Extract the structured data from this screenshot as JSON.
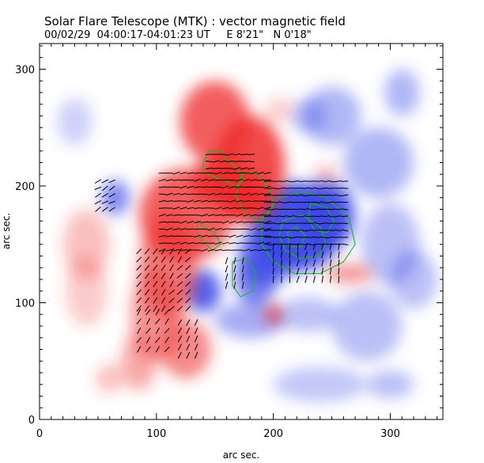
{
  "header": {
    "title": "Solar Flare Telescope (MTK) : vector magnetic field",
    "subtitle": "00/02/29  04:00:17-04:01:23 UT     E 8'21\"   N 0'18\""
  },
  "chart_data": {
    "type": "heatmap",
    "title": "Solar Flare Telescope (MTK) : vector magnetic field",
    "subtitle": "00/02/29  04:00:17-04:01:23 UT     E 8'21\"   N 0'18\"",
    "xlabel": "arc sec.",
    "ylabel": "arc sec.",
    "xlim": [
      0,
      345
    ],
    "ylim": [
      0,
      322
    ],
    "xticks": [
      "0",
      "100",
      "200",
      "300"
    ],
    "yticks": [
      "0",
      "100",
      "200",
      "300"
    ],
    "grid": false,
    "colors": {
      "positive": "#ee2a2a",
      "negative": "#3a48e6",
      "contour": "#21b521",
      "vectors": "#000000"
    },
    "positive_regions": [
      {
        "x": 150,
        "y": 255,
        "rx": 30,
        "ry": 35,
        "strength": 0.75
      },
      {
        "x": 180,
        "y": 215,
        "rx": 30,
        "ry": 45,
        "strength": 0.85
      },
      {
        "x": 155,
        "y": 205,
        "rx": 25,
        "ry": 20,
        "strength": 0.9
      },
      {
        "x": 175,
        "y": 190,
        "rx": 20,
        "ry": 22,
        "strength": 0.95
      },
      {
        "x": 125,
        "y": 175,
        "rx": 40,
        "ry": 40,
        "strength": 0.75
      },
      {
        "x": 110,
        "y": 130,
        "rx": 25,
        "ry": 45,
        "strength": 0.6
      },
      {
        "x": 100,
        "y": 90,
        "rx": 22,
        "ry": 40,
        "strength": 0.5
      },
      {
        "x": 125,
        "y": 60,
        "rx": 22,
        "ry": 25,
        "strength": 0.55
      },
      {
        "x": 85,
        "y": 50,
        "rx": 15,
        "ry": 25,
        "strength": 0.4
      },
      {
        "x": 40,
        "y": 150,
        "rx": 20,
        "ry": 30,
        "strength": 0.3
      },
      {
        "x": 40,
        "y": 110,
        "rx": 18,
        "ry": 30,
        "strength": 0.25
      },
      {
        "x": 60,
        "y": 35,
        "rx": 12,
        "ry": 12,
        "strength": 0.3
      },
      {
        "x": 200,
        "y": 90,
        "rx": 7,
        "ry": 8,
        "strength": 0.8
      },
      {
        "x": 265,
        "y": 125,
        "rx": 20,
        "ry": 8,
        "strength": 0.5
      },
      {
        "x": 245,
        "y": 210,
        "rx": 10,
        "ry": 8,
        "strength": 0.3
      },
      {
        "x": 205,
        "y": 265,
        "rx": 12,
        "ry": 10,
        "strength": 0.25
      }
    ],
    "negative_regions": [
      {
        "x": 220,
        "y": 165,
        "rx": 40,
        "ry": 38,
        "strength": 0.95
      },
      {
        "x": 245,
        "y": 175,
        "rx": 25,
        "ry": 30,
        "strength": 0.85
      },
      {
        "x": 195,
        "y": 140,
        "rx": 25,
        "ry": 25,
        "strength": 0.75
      },
      {
        "x": 185,
        "y": 120,
        "rx": 18,
        "ry": 22,
        "strength": 0.7
      },
      {
        "x": 140,
        "y": 110,
        "rx": 15,
        "ry": 18,
        "strength": 0.85
      },
      {
        "x": 65,
        "y": 190,
        "rx": 12,
        "ry": 15,
        "strength": 0.65
      },
      {
        "x": 250,
        "y": 260,
        "rx": 25,
        "ry": 25,
        "strength": 0.4
      },
      {
        "x": 290,
        "y": 220,
        "rx": 30,
        "ry": 30,
        "strength": 0.4
      },
      {
        "x": 300,
        "y": 150,
        "rx": 25,
        "ry": 35,
        "strength": 0.35
      },
      {
        "x": 320,
        "y": 120,
        "rx": 20,
        "ry": 25,
        "strength": 0.35
      },
      {
        "x": 280,
        "y": 80,
        "rx": 30,
        "ry": 30,
        "strength": 0.35
      },
      {
        "x": 180,
        "y": 85,
        "rx": 30,
        "ry": 15,
        "strength": 0.45
      },
      {
        "x": 230,
        "y": 90,
        "rx": 25,
        "ry": 15,
        "strength": 0.35
      },
      {
        "x": 240,
        "y": 30,
        "rx": 40,
        "ry": 15,
        "strength": 0.3
      },
      {
        "x": 300,
        "y": 30,
        "rx": 20,
        "ry": 12,
        "strength": 0.35
      },
      {
        "x": 310,
        "y": 280,
        "rx": 15,
        "ry": 20,
        "strength": 0.4
      },
      {
        "x": 30,
        "y": 255,
        "rx": 15,
        "ry": 20,
        "strength": 0.25
      },
      {
        "x": 230,
        "y": 260,
        "rx": 15,
        "ry": 15,
        "strength": 0.35
      }
    ],
    "contours": [
      [
        [
          140,
          220
        ],
        [
          145,
          230
        ],
        [
          155,
          230
        ],
        [
          160,
          222
        ],
        [
          170,
          215
        ],
        [
          175,
          205
        ],
        [
          168,
          200
        ],
        [
          158,
          205
        ],
        [
          148,
          208
        ],
        [
          140,
          212
        ]
      ],
      [
        [
          173,
          210
        ],
        [
          185,
          212
        ],
        [
          195,
          200
        ],
        [
          200,
          185
        ],
        [
          195,
          175
        ],
        [
          185,
          170
        ],
        [
          175,
          178
        ],
        [
          168,
          192
        ]
      ],
      [
        [
          135,
          170
        ],
        [
          140,
          165
        ],
        [
          150,
          160
        ],
        [
          155,
          150
        ],
        [
          148,
          145
        ],
        [
          140,
          152
        ],
        [
          135,
          160
        ]
      ],
      [
        [
          205,
          190
        ],
        [
          225,
          195
        ],
        [
          245,
          190
        ],
        [
          265,
          172
        ],
        [
          270,
          150
        ],
        [
          260,
          135
        ],
        [
          240,
          125
        ],
        [
          218,
          125
        ],
        [
          200,
          135
        ],
        [
          190,
          150
        ],
        [
          190,
          170
        ]
      ],
      [
        [
          208,
          170
        ],
        [
          225,
          175
        ],
        [
          240,
          165
        ],
        [
          245,
          150
        ],
        [
          238,
          140
        ],
        [
          222,
          138
        ],
        [
          210,
          145
        ],
        [
          205,
          158
        ]
      ],
      [
        [
          212,
          160
        ],
        [
          220,
          165
        ],
        [
          227,
          158
        ],
        [
          224,
          148
        ],
        [
          214,
          148
        ]
      ],
      [
        [
          232,
          185
        ],
        [
          245,
          182
        ],
        [
          252,
          170
        ],
        [
          246,
          160
        ],
        [
          235,
          162
        ],
        [
          230,
          172
        ]
      ],
      [
        [
          165,
          135
        ],
        [
          178,
          138
        ],
        [
          185,
          125
        ],
        [
          182,
          110
        ],
        [
          172,
          105
        ],
        [
          165,
          115
        ]
      ]
    ],
    "vector_regions": [
      {
        "x": [
          105,
          195
        ],
        "y": [
          145,
          215
        ],
        "step": 6,
        "angle": 8
      },
      {
        "x": [
          145,
          185
        ],
        "y": [
          215,
          232
        ],
        "step": 6,
        "angle": 5
      },
      {
        "x": [
          195,
          265
        ],
        "y": [
          150,
          205
        ],
        "step": 6,
        "angle": -2
      },
      {
        "x": [
          200,
          260
        ],
        "y": [
          120,
          150
        ],
        "step": 7,
        "angle": 80
      },
      {
        "x": [
          85,
          130
        ],
        "y": [
          95,
          145
        ],
        "step": 7,
        "angle": 50
      },
      {
        "x": [
          85,
          110
        ],
        "y": [
          60,
          95
        ],
        "step": 8,
        "angle": 55
      },
      {
        "x": [
          120,
          140
        ],
        "y": [
          55,
          85
        ],
        "step": 7,
        "angle": 60
      },
      {
        "x": [
          50,
          65
        ],
        "y": [
          180,
          205
        ],
        "step": 6,
        "angle": 30
      },
      {
        "x": [
          160,
          175
        ],
        "y": [
          115,
          140
        ],
        "step": 7,
        "angle": 70
      }
    ]
  }
}
